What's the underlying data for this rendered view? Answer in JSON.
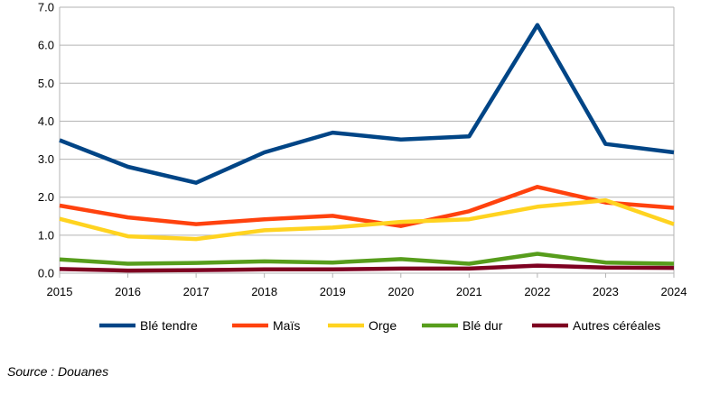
{
  "chart_data": {
    "type": "line",
    "x": [
      "2015",
      "2016",
      "2017",
      "2018",
      "2019",
      "2020",
      "2021",
      "2022",
      "2023",
      "2024"
    ],
    "y_ticks": [
      "0.0",
      "1.0",
      "2.0",
      "3.0",
      "4.0",
      "5.0",
      "6.0",
      "7.0"
    ],
    "ylim": [
      0,
      7
    ],
    "grid": "horizontal",
    "legend_position": "bottom",
    "series": [
      {
        "name": "Blé tendre",
        "color": "#004586",
        "values": [
          3.5,
          2.8,
          2.38,
          3.18,
          3.7,
          3.52,
          3.6,
          6.53,
          3.4,
          3.18
        ]
      },
      {
        "name": "Maïs",
        "color": "#ff420e",
        "values": [
          1.78,
          1.47,
          1.29,
          1.42,
          1.51,
          1.24,
          1.63,
          2.27,
          1.86,
          1.72
        ]
      },
      {
        "name": "Orge",
        "color": "#ffd320",
        "values": [
          1.43,
          0.97,
          0.9,
          1.13,
          1.2,
          1.35,
          1.42,
          1.75,
          1.92,
          1.29
        ]
      },
      {
        "name": "Blé dur",
        "color": "#579d1c",
        "values": [
          0.36,
          0.25,
          0.27,
          0.31,
          0.28,
          0.37,
          0.25,
          0.51,
          0.28,
          0.25
        ]
      },
      {
        "name": "Autres céréales",
        "color": "#7e0021",
        "values": [
          0.11,
          0.07,
          0.08,
          0.1,
          0.1,
          0.12,
          0.12,
          0.2,
          0.15,
          0.14
        ]
      }
    ]
  },
  "source": "Source : Douanes"
}
